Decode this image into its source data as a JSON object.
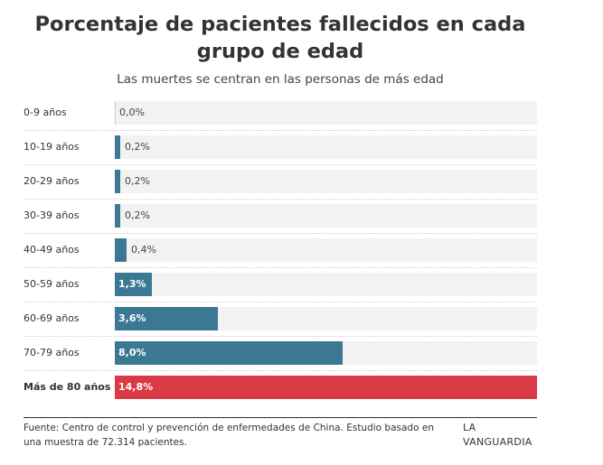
{
  "chart_data": {
    "type": "bar",
    "orientation": "horizontal",
    "title": "Porcentaje de pacientes fallecidos en cada grupo de edad",
    "subtitle": "Las muertes se centran en las personas de más edad",
    "categories": [
      "0-9 años",
      "10-19 años",
      "20-29 años",
      "30-39 años",
      "40-49 años",
      "50-59 años",
      "60-69 años",
      "70-79 años",
      "Más de 80 años"
    ],
    "values": [
      0.0,
      0.2,
      0.2,
      0.2,
      0.4,
      1.3,
      3.6,
      8.0,
      14.8
    ],
    "value_labels": [
      "0,0%",
      "0,2%",
      "0,2%",
      "0,2%",
      "0,4%",
      "1,3%",
      "3,6%",
      "8,0%",
      "14,8%"
    ],
    "highlight_index": 8,
    "xlim": [
      0,
      14.8
    ],
    "unit": "%",
    "colors": {
      "bar": "#3a7893",
      "highlight": "#d93a46",
      "track": "#f2f2f2"
    }
  },
  "footer": {
    "source": "Fuente: Centro de control y prevención de enfermedades de China. Estudio basado en una muestra de 72.314 pacientes.",
    "brand": "LA VANGUARDIA"
  }
}
